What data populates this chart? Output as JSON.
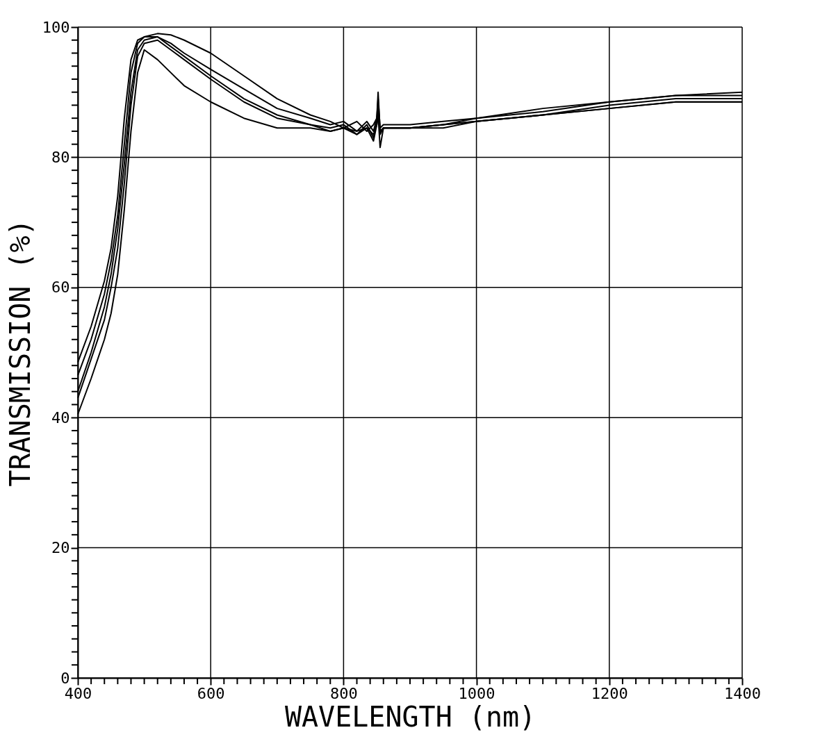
{
  "chart_data": {
    "type": "line",
    "xlabel": "WAVELENGTH (nm)",
    "ylabel": "TRANSMISSION (%)",
    "xlim": [
      400,
      1400
    ],
    "ylim": [
      0,
      100
    ],
    "grid": true,
    "legend": false,
    "marker": "none",
    "line_style": "solid",
    "xticks": [
      400,
      {
        "value": 420,
        "label": null
      },
      {
        "value": 440,
        "label": null
      },
      {
        "value": 460,
        "label": null
      },
      {
        "value": 480,
        "label": null
      },
      {
        "value": 500,
        "label": null
      },
      {
        "value": 520,
        "label": null
      },
      {
        "value": 540,
        "label": null
      },
      {
        "value": 560,
        "label": null
      },
      {
        "value": 580,
        "label": null
      },
      600,
      {
        "value": 620,
        "label": null
      },
      {
        "value": 640,
        "label": null
      },
      {
        "value": 660,
        "label": null
      },
      {
        "value": 680,
        "label": null
      },
      {
        "value": 700,
        "label": null
      },
      {
        "value": 720,
        "label": null
      },
      {
        "value": 740,
        "label": null
      },
      {
        "value": 760,
        "label": null
      },
      {
        "value": 780,
        "label": null
      },
      800,
      {
        "value": 820,
        "label": null
      },
      {
        "value": 840,
        "label": null
      },
      {
        "value": 860,
        "label": null
      },
      {
        "value": 880,
        "label": null
      },
      {
        "value": 900,
        "label": null
      },
      {
        "value": 920,
        "label": null
      },
      {
        "value": 940,
        "label": null
      },
      {
        "value": 960,
        "label": null
      },
      {
        "value": 980,
        "label": null
      },
      1000,
      {
        "value": 1020,
        "label": null
      },
      {
        "value": 1040,
        "label": null
      },
      {
        "value": 1060,
        "label": null
      },
      {
        "value": 1080,
        "label": null
      },
      {
        "value": 1100,
        "label": null
      },
      {
        "value": 1120,
        "label": null
      },
      {
        "value": 1140,
        "label": null
      },
      {
        "value": 1160,
        "label": null
      },
      {
        "value": 1180,
        "label": null
      },
      1200,
      {
        "value": 1220,
        "label": null
      },
      {
        "value": 1240,
        "label": null
      },
      {
        "value": 1260,
        "label": null
      },
      {
        "value": 1280,
        "label": null
      },
      {
        "value": 1300,
        "label": null
      },
      {
        "value": 1320,
        "label": null
      },
      {
        "value": 1340,
        "label": null
      },
      {
        "value": 1360,
        "label": null
      },
      {
        "value": 1380,
        "label": null
      },
      1400
    ],
    "yticks": [
      0,
      {
        "value": 2,
        "label": null
      },
      {
        "value": 4,
        "label": null
      },
      {
        "value": 6,
        "label": null
      },
      {
        "value": 8,
        "label": null
      },
      {
        "value": 10,
        "label": null
      },
      {
        "value": 12,
        "label": null
      },
      {
        "value": 14,
        "label": null
      },
      {
        "value": 16,
        "label": null
      },
      {
        "value": 18,
        "label": null
      },
      20,
      {
        "value": 22,
        "label": null
      },
      {
        "value": 24,
        "label": null
      },
      {
        "value": 26,
        "label": null
      },
      {
        "value": 28,
        "label": null
      },
      {
        "value": 30,
        "label": null
      },
      {
        "value": 32,
        "label": null
      },
      {
        "value": 34,
        "label": null
      },
      {
        "value": 36,
        "label": null
      },
      {
        "value": 38,
        "label": null
      },
      40,
      {
        "value": 42,
        "label": null
      },
      {
        "value": 44,
        "label": null
      },
      {
        "value": 46,
        "label": null
      },
      {
        "value": 48,
        "label": null
      },
      {
        "value": 50,
        "label": null
      },
      {
        "value": 52,
        "label": null
      },
      {
        "value": 54,
        "label": null
      },
      {
        "value": 56,
        "label": null
      },
      {
        "value": 58,
        "label": null
      },
      60,
      {
        "value": 62,
        "label": null
      },
      {
        "value": 64,
        "label": null
      },
      {
        "value": 66,
        "label": null
      },
      {
        "value": 68,
        "label": null
      },
      {
        "value": 70,
        "label": null
      },
      {
        "value": 72,
        "label": null
      },
      {
        "value": 74,
        "label": null
      },
      {
        "value": 76,
        "label": null
      },
      {
        "value": 78,
        "label": null
      },
      80,
      {
        "value": 82,
        "label": null
      },
      {
        "value": 84,
        "label": null
      },
      {
        "value": 86,
        "label": null
      },
      {
        "value": 88,
        "label": null
      },
      {
        "value": 90,
        "label": null
      },
      {
        "value": 92,
        "label": null
      },
      {
        "value": 94,
        "label": null
      },
      {
        "value": 96,
        "label": null
      },
      {
        "value": 98,
        "label": null
      },
      100
    ],
    "x": [
      400,
      420,
      440,
      450,
      460,
      470,
      480,
      490,
      500,
      520,
      540,
      560,
      600,
      650,
      700,
      750,
      780,
      800,
      820,
      835,
      845,
      850,
      852,
      855,
      860,
      900,
      950,
      1000,
      1100,
      1200,
      1300,
      1400
    ],
    "series": [
      {
        "color": "#000000",
        "values": [
          48.5,
          54,
          61,
          66,
          74,
          86,
          95,
          98,
          98.5,
          98.5,
          97.5,
          96,
          93.5,
          90.5,
          87.5,
          86,
          85,
          85.5,
          84,
          85.5,
          84,
          86,
          90,
          84,
          84.5,
          84.5,
          85,
          86,
          87,
          88.5,
          89.5,
          90
        ]
      },
      {
        "color": "#000000",
        "values": [
          46.5,
          52,
          59,
          64,
          71,
          82,
          93,
          97.5,
          98.5,
          99,
          98.8,
          98,
          96,
          92.5,
          89,
          86.5,
          85.5,
          84.5,
          85.5,
          84,
          85,
          86,
          89,
          84.5,
          85,
          85,
          85.5,
          86,
          87.5,
          88.5,
          89.5,
          89.5
        ]
      },
      {
        "color": "#000000",
        "values": [
          44,
          50,
          57,
          62,
          69,
          79,
          90,
          96.5,
          98,
          98.5,
          97,
          95.5,
          92.5,
          89,
          86.5,
          85,
          84.5,
          85,
          83.5,
          85,
          83,
          85.5,
          88,
          84,
          84.5,
          84.5,
          85,
          85.5,
          86.5,
          88,
          89,
          89
        ]
      },
      {
        "color": "#000000",
        "values": [
          43,
          49,
          55,
          60,
          66,
          76,
          88,
          95.5,
          97.5,
          98,
          96.5,
          95,
          92,
          88.5,
          86,
          85,
          84,
          84.5,
          84,
          84.5,
          83.5,
          85,
          87,
          83.5,
          84.5,
          84.5,
          85,
          85.5,
          86.5,
          87.5,
          88.5,
          88.5
        ]
      },
      {
        "color": "#000000",
        "values": [
          40.5,
          46,
          52,
          56,
          62,
          72,
          84,
          93,
          96.5,
          95,
          93,
          91,
          88.5,
          86,
          84.5,
          84.5,
          84,
          84.5,
          83.5,
          84.5,
          82.5,
          85,
          86.5,
          81.5,
          84.5,
          84.5,
          84.5,
          85.5,
          86.5,
          87.5,
          88.5,
          88.5
        ]
      }
    ]
  }
}
